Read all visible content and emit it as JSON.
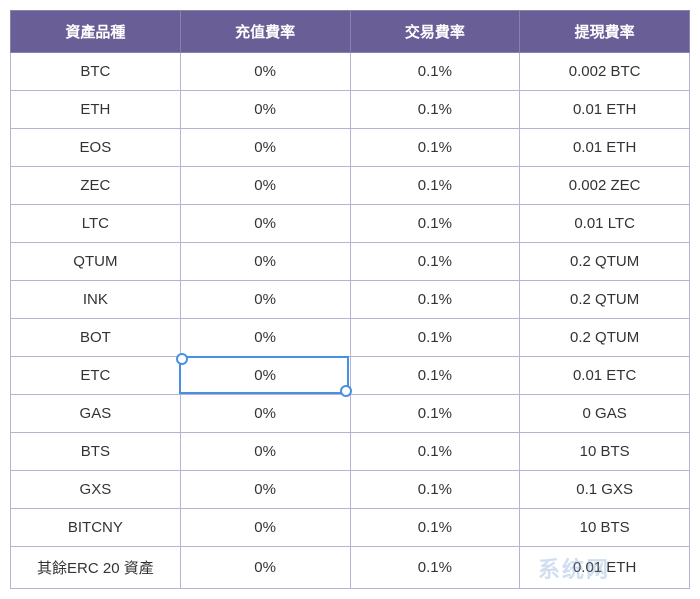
{
  "table": {
    "columns": [
      "資產品種",
      "充值費率",
      "交易費率",
      "提現費率"
    ],
    "column_widths": [
      "25%",
      "25%",
      "25%",
      "25%"
    ],
    "header_bg": "#6a5e97",
    "header_fg": "#ffffff",
    "border_color": "#b5b3d0",
    "cell_fg": "#333333",
    "fontsize": 15,
    "rows": [
      [
        "BTC",
        "0%",
        "0.1%",
        "0.002 BTC"
      ],
      [
        "ETH",
        "0%",
        "0.1%",
        "0.01 ETH"
      ],
      [
        "EOS",
        "0%",
        "0.1%",
        "0.01 ETH"
      ],
      [
        "ZEC",
        "0%",
        "0.1%",
        "0.002 ZEC"
      ],
      [
        "LTC",
        "0%",
        "0.1%",
        "0.01 LTC"
      ],
      [
        "QTUM",
        "0%",
        "0.1%",
        "0.2 QTUM"
      ],
      [
        "INK",
        "0%",
        "0.1%",
        "0.2 QTUM"
      ],
      [
        "BOT",
        "0%",
        "0.1%",
        "0.2 QTUM"
      ],
      [
        "ETC",
        "0%",
        "0.1%",
        "0.01 ETC"
      ],
      [
        "GAS",
        "0%",
        "0.1%",
        "0 GAS"
      ],
      [
        "BTS",
        "0%",
        "0.1%",
        "10 BTS"
      ],
      [
        "GXS",
        "0%",
        "0.1%",
        "0.1 GXS"
      ],
      [
        "BITCNY",
        "0%",
        "0.1%",
        "10 BTS"
      ],
      [
        "其餘ERC 20 資產",
        "0%",
        "0.1%",
        "0.01 ETH"
      ]
    ]
  },
  "selection": {
    "row": 8,
    "col": 1,
    "color": "#4a90e2"
  },
  "watermark": {
    "text": "系统网",
    "color": "rgba(120,160,210,0.35)"
  }
}
